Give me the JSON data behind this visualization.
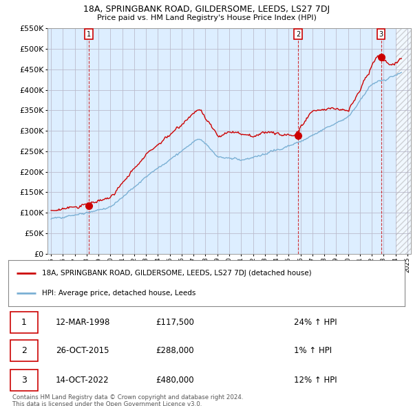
{
  "title1": "18A, SPRINGBANK ROAD, GILDERSOME, LEEDS, LS27 7DJ",
  "title2": "Price paid vs. HM Land Registry's House Price Index (HPI)",
  "ylim": [
    0,
    550000
  ],
  "yticks": [
    0,
    50000,
    100000,
    150000,
    200000,
    250000,
    300000,
    350000,
    400000,
    450000,
    500000,
    550000
  ],
  "xlim_start": 1994.7,
  "xlim_end": 2025.3,
  "hatch_start": 2024.0,
  "red_color": "#cc0000",
  "blue_color": "#7ab0d4",
  "chart_bg": "#ddeeff",
  "sale_dates": [
    1998.19,
    2015.82,
    2022.78
  ],
  "sale_prices": [
    117500,
    288000,
    480000
  ],
  "sale_labels": [
    "1",
    "2",
    "3"
  ],
  "legend_label_red": "18A, SPRINGBANK ROAD, GILDERSOME, LEEDS, LS27 7DJ (detached house)",
  "legend_label_blue": "HPI: Average price, detached house, Leeds",
  "table_data": [
    [
      "1",
      "12-MAR-1998",
      "£117,500",
      "24% ↑ HPI"
    ],
    [
      "2",
      "26-OCT-2015",
      "£288,000",
      "1% ↑ HPI"
    ],
    [
      "3",
      "14-OCT-2022",
      "£480,000",
      "12% ↑ HPI"
    ]
  ],
  "footnote1": "Contains HM Land Registry data © Crown copyright and database right 2024.",
  "footnote2": "This data is licensed under the Open Government Licence v3.0.",
  "background_color": "#ffffff",
  "grid_color": "#bbbbcc"
}
